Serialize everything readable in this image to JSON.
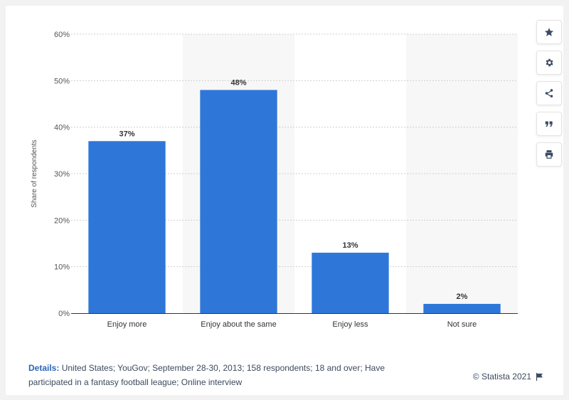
{
  "chart_data": {
    "type": "bar",
    "categories": [
      "Enjoy more",
      "Enjoy about the same",
      "Enjoy less",
      "Not sure"
    ],
    "values": [
      37,
      48,
      13,
      2
    ],
    "value_labels": [
      "37%",
      "48%",
      "13%",
      "2%"
    ],
    "ylabel": "Share of respondents",
    "ylim": [
      0,
      60
    ],
    "yticks": [
      "0%",
      "10%",
      "20%",
      "30%",
      "40%",
      "50%",
      "60%"
    ],
    "bar_color": "#2e77d9",
    "grid": true
  },
  "toolbar": {
    "icons": [
      "star-icon",
      "gear-icon",
      "share-icon",
      "quote-icon",
      "print-icon"
    ]
  },
  "footer": {
    "details_label": "Details:",
    "details_text": " United States; YouGov; September 28-30, 2013; 158 respondents; 18 and over; Have participated in a fantasy football league; Online interview",
    "copyright": "© Statista 2021"
  }
}
